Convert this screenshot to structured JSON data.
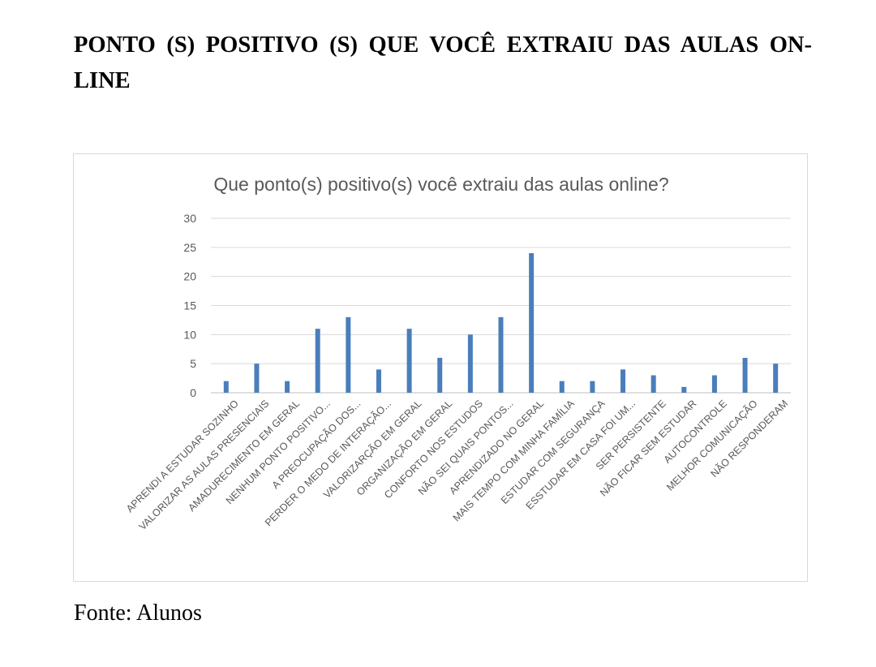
{
  "heading": "PONTO (S) POSITIVO (S) QUE VOCÊ EXTRAIU DAS AULAS ON-LINE",
  "source": "Fonte: Alunos",
  "chart_data": {
    "type": "bar",
    "title": "Que ponto(s) positivo(s) você extraiu das aulas online?",
    "xlabel": "",
    "ylabel": "",
    "ylim": [
      0,
      30
    ],
    "yticks": [
      0,
      5,
      10,
      15,
      20,
      25,
      30
    ],
    "grid": true,
    "legend": "none",
    "bar_color": "#4a7ebb",
    "categories": [
      "APRENDI A ESTUDAR SOZINHO",
      "VALORIZAR AS AULAS PRESENCIAIS",
      "AMADURECIMENTO EM GERAL",
      "NENHUM PONTO POSITIVO...",
      "A PREOCUPAÇÃO DOS...",
      "PERDER O MEDO DE INTERAÇÃO...",
      "VALORIZARÇÃO EM GERAL",
      "ORGANIZAÇÃO EM GERAL",
      "CONFORTO NOS ESTUDOS",
      "NÃO SEI QUAIS PONTOS...",
      "APRENDIZADO NO GERAL",
      "MAIS TEMPO COM MINHA FAMÍLIA",
      "ESTUDAR COM SEGURANÇA",
      "ESSTUDAR EM CASA FOI UM...",
      "SER PERSISTENTE",
      "NÃO FICAR SEM ESTUDAR",
      "AUTOCONTROLE",
      "MELHOR COMUNICAÇÃO",
      "NÃO RESPONDERAM"
    ],
    "values": [
      2,
      5,
      2,
      11,
      13,
      4,
      11,
      6,
      10,
      13,
      24,
      2,
      2,
      4,
      3,
      1,
      3,
      6,
      5
    ]
  }
}
